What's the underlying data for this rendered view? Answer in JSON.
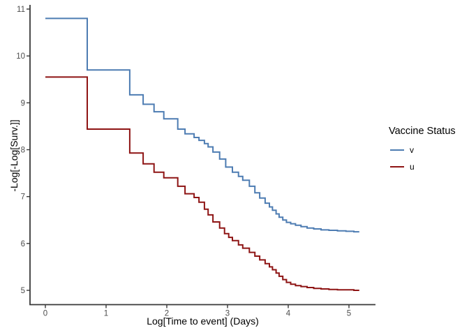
{
  "figure": {
    "background": "#ffffff",
    "axis_line_color": "#383838",
    "tick_label_color": "#4d4d4d"
  },
  "chart_data": {
    "type": "line",
    "subtype": "step-post-kaplan-meier-cloglog",
    "title": "",
    "xlabel": "Log[Time to event] (Days)",
    "ylabel": "-Log[-Log[Surv.]]",
    "xlim": [
      -0.25,
      5.44
    ],
    "ylim": [
      4.67,
      11.09
    ],
    "x_ticks": [
      0,
      1,
      2,
      3,
      4,
      5
    ],
    "y_ticks": [
      5,
      6,
      7,
      8,
      9,
      10,
      11
    ],
    "grid": false,
    "legend_position": "right",
    "legend_title": "Vaccine Status",
    "series": [
      {
        "name": "v",
        "color": "#4d7cb2",
        "start": [
          0,
          10.8
        ],
        "end_x": 5.17,
        "steps": [
          [
            0.69,
            9.7
          ],
          [
            1.39,
            9.17
          ],
          [
            1.61,
            8.97
          ],
          [
            1.79,
            8.81
          ],
          [
            1.95,
            8.66
          ],
          [
            2.18,
            8.44
          ],
          [
            2.3,
            8.34
          ],
          [
            2.45,
            8.26
          ],
          [
            2.53,
            8.2
          ],
          [
            2.62,
            8.13
          ],
          [
            2.68,
            8.06
          ],
          [
            2.76,
            7.95
          ],
          [
            2.87,
            7.8
          ],
          [
            2.97,
            7.63
          ],
          [
            3.08,
            7.52
          ],
          [
            3.18,
            7.43
          ],
          [
            3.25,
            7.35
          ],
          [
            3.36,
            7.22
          ],
          [
            3.45,
            7.08
          ],
          [
            3.53,
            6.97
          ],
          [
            3.62,
            6.86
          ],
          [
            3.69,
            6.78
          ],
          [
            3.74,
            6.71
          ],
          [
            3.8,
            6.63
          ],
          [
            3.85,
            6.56
          ],
          [
            3.91,
            6.5
          ],
          [
            3.97,
            6.45
          ],
          [
            4.04,
            6.42
          ],
          [
            4.12,
            6.39
          ],
          [
            4.21,
            6.36
          ],
          [
            4.31,
            6.33
          ],
          [
            4.42,
            6.31
          ],
          [
            4.54,
            6.29
          ],
          [
            4.67,
            6.28
          ],
          [
            4.81,
            6.27
          ],
          [
            4.95,
            6.26
          ],
          [
            5.08,
            6.25
          ]
        ]
      },
      {
        "name": "u",
        "color": "#8e1414",
        "start": [
          0,
          9.55
        ],
        "end_x": 5.17,
        "steps": [
          [
            0.69,
            8.44
          ],
          [
            1.39,
            7.93
          ],
          [
            1.61,
            7.7
          ],
          [
            1.79,
            7.52
          ],
          [
            1.95,
            7.4
          ],
          [
            2.18,
            7.22
          ],
          [
            2.3,
            7.06
          ],
          [
            2.45,
            6.98
          ],
          [
            2.53,
            6.88
          ],
          [
            2.62,
            6.73
          ],
          [
            2.68,
            6.61
          ],
          [
            2.76,
            6.46
          ],
          [
            2.87,
            6.33
          ],
          [
            2.95,
            6.21
          ],
          [
            3.02,
            6.13
          ],
          [
            3.08,
            6.06
          ],
          [
            3.18,
            5.97
          ],
          [
            3.25,
            5.9
          ],
          [
            3.36,
            5.81
          ],
          [
            3.45,
            5.73
          ],
          [
            3.53,
            5.65
          ],
          [
            3.62,
            5.57
          ],
          [
            3.69,
            5.5
          ],
          [
            3.74,
            5.44
          ],
          [
            3.8,
            5.37
          ],
          [
            3.85,
            5.3
          ],
          [
            3.91,
            5.23
          ],
          [
            3.97,
            5.17
          ],
          [
            4.04,
            5.13
          ],
          [
            4.12,
            5.1
          ],
          [
            4.21,
            5.08
          ],
          [
            4.31,
            5.06
          ],
          [
            4.42,
            5.04
          ],
          [
            4.54,
            5.03
          ],
          [
            4.67,
            5.02
          ],
          [
            4.81,
            5.01
          ],
          [
            4.95,
            5.01
          ],
          [
            5.08,
            5.0
          ]
        ]
      }
    ],
    "legend_items": [
      {
        "label": "v",
        "color": "#4d7cb2"
      },
      {
        "label": "u",
        "color": "#8e1414"
      }
    ]
  }
}
